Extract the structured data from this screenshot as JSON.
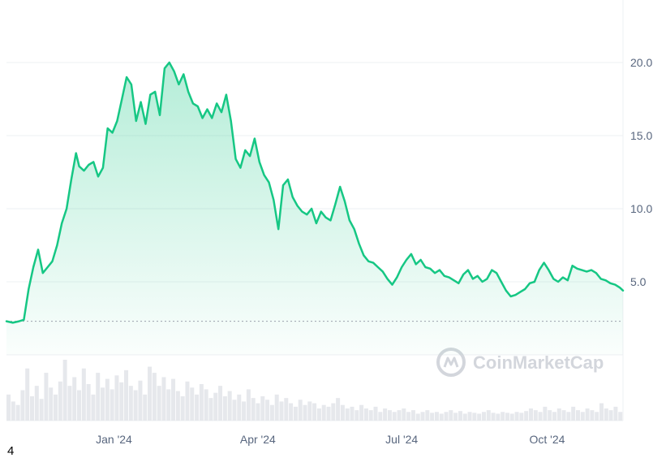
{
  "chart_data": {
    "type": "area",
    "y_ticks": [
      5.0,
      10.0,
      15.0,
      20.0
    ],
    "y_tick_labels": [
      "5.0",
      "10.0",
      "15.0",
      "20.0"
    ],
    "ylim": [
      0,
      24
    ],
    "x_ticks": [
      {
        "label": "Jan '24",
        "date": "2024-01-01"
      },
      {
        "label": "Apr '24",
        "date": "2024-04-01"
      },
      {
        "label": "Jul '24",
        "date": "2024-07-01"
      },
      {
        "label": "Oct '24",
        "date": "2024-10-01"
      }
    ],
    "x_range": [
      "2023-10-25",
      "2024-11-18"
    ],
    "reference_line": {
      "value": 2.3,
      "style": "dotted"
    },
    "grid": true,
    "line_color": "#16c784",
    "volume_color": "#e6e8ec",
    "series": [
      {
        "x": [
          "2023-10-25",
          "2023-10-29",
          "2023-11-02",
          "2023-11-05",
          "2023-11-08",
          "2023-11-11",
          "2023-11-14",
          "2023-11-17",
          "2023-11-20",
          "2023-11-23",
          "2023-11-26",
          "2023-11-29",
          "2023-12-02",
          "2023-12-05",
          "2023-12-08",
          "2023-12-10",
          "2023-12-13",
          "2023-12-16",
          "2023-12-19",
          "2023-12-22",
          "2023-12-25",
          "2023-12-28",
          "2023-12-31",
          "2024-01-03",
          "2024-01-06",
          "2024-01-09",
          "2024-01-12",
          "2024-01-15",
          "2024-01-18",
          "2024-01-21",
          "2024-01-24",
          "2024-01-27",
          "2024-01-30",
          "2024-02-02",
          "2024-02-05",
          "2024-02-08",
          "2024-02-11",
          "2024-02-14",
          "2024-02-17",
          "2024-02-20",
          "2024-02-23",
          "2024-02-26",
          "2024-02-29",
          "2024-03-03",
          "2024-03-06",
          "2024-03-09",
          "2024-03-12",
          "2024-03-15",
          "2024-03-18",
          "2024-03-21",
          "2024-03-24",
          "2024-03-27",
          "2024-03-30",
          "2024-04-02",
          "2024-04-05",
          "2024-04-08",
          "2024-04-11",
          "2024-04-14",
          "2024-04-17",
          "2024-04-20",
          "2024-04-23",
          "2024-04-26",
          "2024-04-29",
          "2024-05-02",
          "2024-05-05",
          "2024-05-08",
          "2024-05-11",
          "2024-05-14",
          "2024-05-17",
          "2024-05-20",
          "2024-05-23",
          "2024-05-26",
          "2024-05-29",
          "2024-06-01",
          "2024-06-04",
          "2024-06-07",
          "2024-06-10",
          "2024-06-13",
          "2024-06-16",
          "2024-06-19",
          "2024-06-22",
          "2024-06-25",
          "2024-06-28",
          "2024-07-01",
          "2024-07-04",
          "2024-07-07",
          "2024-07-10",
          "2024-07-13",
          "2024-07-16",
          "2024-07-19",
          "2024-07-22",
          "2024-07-25",
          "2024-07-28",
          "2024-07-31",
          "2024-08-03",
          "2024-08-06",
          "2024-08-09",
          "2024-08-12",
          "2024-08-15",
          "2024-08-18",
          "2024-08-21",
          "2024-08-24",
          "2024-08-27",
          "2024-08-30",
          "2024-09-02",
          "2024-09-05",
          "2024-09-08",
          "2024-09-11",
          "2024-09-14",
          "2024-09-17",
          "2024-09-20",
          "2024-09-23",
          "2024-09-26",
          "2024-09-29",
          "2024-10-02",
          "2024-10-05",
          "2024-10-08",
          "2024-10-11",
          "2024-10-14",
          "2024-10-17",
          "2024-10-20",
          "2024-10-23",
          "2024-10-26",
          "2024-10-29",
          "2024-11-01",
          "2024-11-04",
          "2024-11-07",
          "2024-11-10",
          "2024-11-13",
          "2024-11-16",
          "2024-11-18"
        ],
        "y": [
          2.3,
          2.2,
          2.3,
          2.4,
          4.5,
          6.0,
          7.2,
          5.6,
          6.0,
          6.4,
          7.5,
          9.0,
          10.0,
          12.0,
          13.8,
          12.9,
          12.6,
          13.0,
          13.2,
          12.2,
          12.8,
          15.5,
          15.2,
          16.0,
          17.5,
          19.0,
          18.5,
          16.0,
          17.3,
          15.8,
          17.8,
          18.0,
          16.4,
          19.6,
          20.0,
          19.4,
          18.5,
          19.2,
          18.0,
          17.2,
          17.0,
          16.2,
          16.8,
          16.2,
          17.2,
          16.6,
          17.8,
          16.0,
          13.4,
          12.8,
          14.0,
          13.6,
          14.8,
          13.2,
          12.3,
          11.8,
          10.6,
          8.6,
          11.6,
          12.0,
          10.8,
          10.2,
          9.8,
          9.6,
          10.0,
          9.0,
          9.8,
          9.4,
          9.2,
          10.3,
          11.5,
          10.5,
          9.2,
          8.6,
          7.6,
          6.8,
          6.4,
          6.3,
          6.0,
          5.7,
          5.2,
          4.8,
          5.3,
          6.0,
          6.5,
          6.9,
          6.2,
          6.5,
          6.0,
          5.9,
          5.6,
          5.8,
          5.4,
          5.3,
          5.1,
          4.9,
          5.5,
          5.8,
          5.2,
          5.4,
          5.0,
          5.2,
          5.8,
          5.6,
          5.0,
          4.4,
          4.0,
          4.1,
          4.3,
          4.5,
          4.9,
          5.0,
          5.8,
          6.3,
          5.8,
          5.2,
          5.0,
          5.3,
          5.1,
          6.1,
          5.9,
          5.8,
          5.7,
          5.8,
          5.6,
          5.2,
          5.1,
          4.9,
          4.8,
          4.6,
          4.4
        ]
      }
    ],
    "volume": [
      30,
      22,
      18,
      35,
      60,
      28,
      40,
      25,
      55,
      38,
      30,
      45,
      70,
      40,
      50,
      35,
      60,
      42,
      30,
      55,
      38,
      48,
      36,
      52,
      44,
      58,
      40,
      35,
      46,
      30,
      62,
      55,
      40,
      50,
      36,
      48,
      34,
      28,
      45,
      38,
      30,
      42,
      36,
      26,
      32,
      40,
      28,
      34,
      24,
      30,
      22,
      36,
      26,
      20,
      28,
      24,
      18,
      30,
      22,
      26,
      20,
      16,
      24,
      18,
      22,
      20,
      14,
      18,
      16,
      20,
      26,
      18,
      14,
      16,
      12,
      18,
      14,
      12,
      16,
      10,
      14,
      12,
      10,
      12,
      14,
      10,
      12,
      8,
      10,
      12,
      9,
      10,
      8,
      10,
      12,
      9,
      11,
      8,
      10,
      9,
      8,
      10,
      12,
      9,
      8,
      10,
      9,
      8,
      10,
      9,
      11,
      14,
      12,
      10,
      16,
      12,
      10,
      14,
      12,
      10,
      16,
      12,
      10,
      14,
      12,
      10,
      20,
      14,
      12,
      16,
      10
    ]
  },
  "watermark": {
    "text": "CoinMarketCap"
  },
  "footnote": "4"
}
